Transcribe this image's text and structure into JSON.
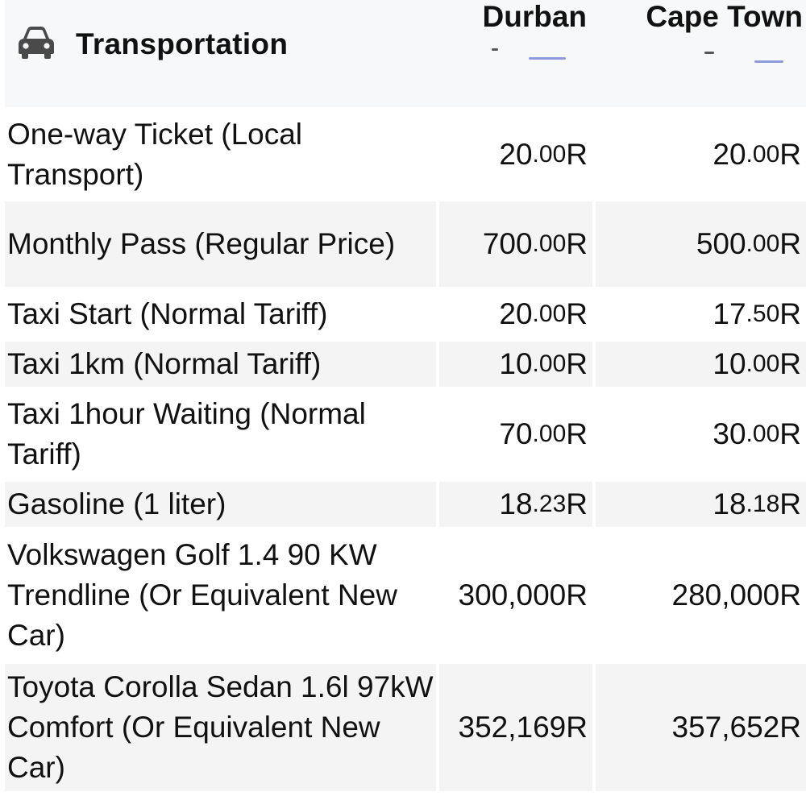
{
  "header": {
    "icon": "car-icon",
    "title": "Transportation",
    "cities": [
      "Durban",
      "Cape Town"
    ]
  },
  "rows": [
    {
      "label": "One-way Ticket (Local Transport)",
      "durban": {
        "main": "20",
        "dec": ".00",
        "cur": "R"
      },
      "cape": {
        "main": "20",
        "dec": ".00",
        "cur": "R"
      }
    },
    {
      "label": "Monthly Pass (Regular Price)",
      "durban": {
        "main": "700",
        "dec": ".00",
        "cur": "R"
      },
      "cape": {
        "main": "500",
        "dec": ".00",
        "cur": "R"
      }
    },
    {
      "label": "Taxi Start (Normal Tariff)",
      "durban": {
        "main": "20",
        "dec": ".00",
        "cur": "R"
      },
      "cape": {
        "main": "17",
        "dec": ".50",
        "cur": "R"
      }
    },
    {
      "label": "Taxi 1km (Normal Tariff)",
      "durban": {
        "main": "10",
        "dec": ".00",
        "cur": "R"
      },
      "cape": {
        "main": "10",
        "dec": ".00",
        "cur": "R"
      }
    },
    {
      "label": "Taxi 1hour Waiting (Normal Tariff)",
      "durban": {
        "main": "70",
        "dec": ".00",
        "cur": "R"
      },
      "cape": {
        "main": "30",
        "dec": ".00",
        "cur": "R"
      }
    },
    {
      "label": "Gasoline (1 liter)",
      "durban": {
        "main": "18",
        "dec": ".23",
        "cur": "R"
      },
      "cape": {
        "main": "18",
        "dec": ".18",
        "cur": "R"
      }
    },
    {
      "label": "Volkswagen Golf 1.4 90 KW Trendline (Or Equivalent New Car)",
      "durban": {
        "main": "300,000",
        "dec": "",
        "cur": "R"
      },
      "cape": {
        "main": "280,000",
        "dec": "",
        "cur": "R"
      }
    },
    {
      "label": "Toyota Corolla Sedan 1.6l 97kW Comfort (Or Equivalent New Car)",
      "durban": {
        "main": "352,169",
        "dec": "",
        "cur": "R"
      },
      "cape": {
        "main": "357,652",
        "dec": "",
        "cur": "R"
      }
    }
  ]
}
